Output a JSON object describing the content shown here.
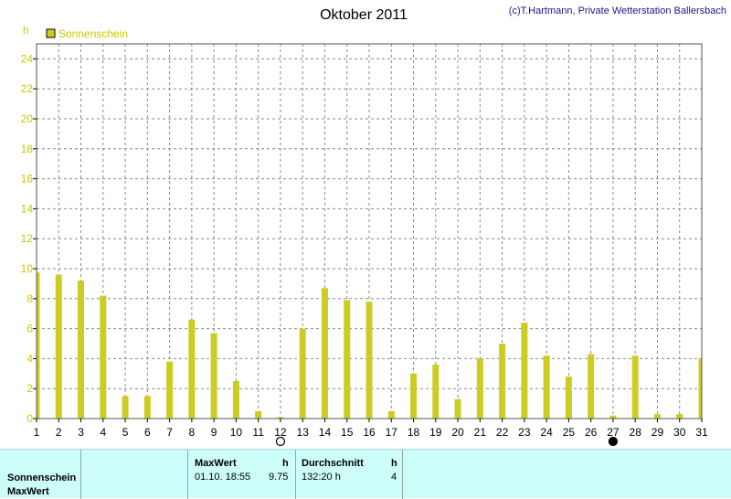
{
  "chart_data": {
    "type": "bar",
    "title": "Oktober 2011",
    "copyright": "(c)T.Hartmann, Private Wetterstation Ballersbach",
    "ylabel": "h",
    "ylim": [
      0,
      25
    ],
    "yticks": [
      0,
      2,
      4,
      6,
      8,
      10,
      12,
      14,
      16,
      18,
      20,
      22,
      24
    ],
    "grid": true,
    "legend": {
      "position": "top-left",
      "label": "Sonnenschein"
    },
    "categories": [
      "1",
      "2",
      "3",
      "4",
      "5",
      "6",
      "7",
      "8",
      "9",
      "10",
      "11",
      "12",
      "13",
      "14",
      "15",
      "16",
      "17",
      "18",
      "19",
      "20",
      "21",
      "22",
      "23",
      "24",
      "25",
      "26",
      "27",
      "28",
      "29",
      "30",
      "31"
    ],
    "series": [
      {
        "name": "Sonnenschein",
        "color": "#cccc22",
        "values": [
          9.75,
          9.6,
          9.2,
          8.2,
          1.5,
          1.5,
          3.8,
          6.6,
          5.7,
          2.5,
          0.5,
          0.1,
          6.0,
          8.7,
          7.9,
          7.8,
          0.5,
          3.0,
          3.6,
          1.3,
          4.0,
          5.0,
          6.4,
          4.2,
          2.8,
          4.3,
          0.2,
          4.2,
          0.3,
          0.3,
          4.0
        ]
      }
    ],
    "moon_phases": [
      {
        "day": 12,
        "phase": "full-moon"
      },
      {
        "day": 27,
        "phase": "new-moon"
      }
    ]
  },
  "stats": {
    "row_labels": [
      "Sonnenschein",
      "MaxWert"
    ],
    "max_header": "MaxWert",
    "max_unit": "h",
    "avg_header": "Durchschnitt",
    "avg_unit": "h",
    "max_datetime": "01.10.  18:55",
    "max_value": "9.75",
    "avg_value": "132:20 h",
    "avg_extra": "4"
  }
}
